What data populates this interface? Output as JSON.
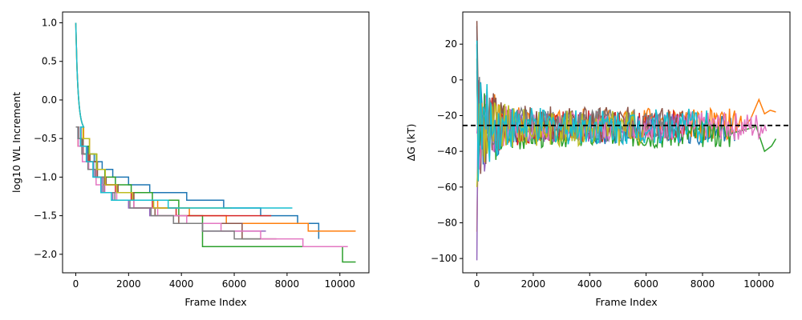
{
  "chart_data": [
    {
      "type": "line",
      "title": "",
      "xlabel": "Frame Index",
      "ylabel": "log10 WL Increment",
      "xlim": [
        -500,
        11100
      ],
      "ylim": [
        -2.24,
        1.14
      ],
      "xticks": [
        0,
        2000,
        4000,
        6000,
        8000,
        10000
      ],
      "yticks": [
        -2.0,
        -1.5,
        -1.0,
        -0.5,
        0.0,
        0.5,
        1.0
      ],
      "xtick_labels": [
        "0",
        "2000",
        "4000",
        "6000",
        "8000",
        "10000"
      ],
      "ytick_labels": [
        "−2.0",
        "−1.5",
        "−1.0",
        "−0.5",
        "0.0",
        "0.5",
        "1.0"
      ],
      "grid": false,
      "legend": "none",
      "step_values": [
        -0.35,
        -0.5,
        -0.6,
        -0.7,
        -0.8,
        -0.9,
        -1.0,
        -1.1,
        -1.2,
        -1.3,
        -1.4,
        -1.5,
        -1.6,
        -1.7,
        -1.8,
        -1.9,
        -2.0,
        -2.1
      ],
      "series": [
        {
          "color": "#1f77b4",
          "x": [
            0,
            80,
            220,
            450,
            700,
            1000,
            1400,
            2000,
            2800,
            4200,
            5600,
            7000,
            8400,
            9200
          ],
          "y": [
            -0.35,
            -0.5,
            -0.6,
            -0.7,
            -0.8,
            -0.9,
            -1.0,
            -1.1,
            -1.2,
            -1.3,
            -1.4,
            -1.5,
            -1.6,
            -1.8
          ]
        },
        {
          "color": "#ff7f0e",
          "x": [
            0,
            120,
            300,
            520,
            800,
            1150,
            1600,
            2200,
            3100,
            4300,
            5700,
            7200,
            8800,
            10600
          ],
          "y": [
            1.0,
            0.0,
            -0.5,
            -0.8,
            -1.0,
            -1.1,
            -1.2,
            -1.3,
            -1.4,
            -1.5,
            -1.6,
            -1.6,
            -1.7,
            -1.7
          ]
        },
        {
          "color": "#2ca02c",
          "x": [
            0,
            100,
            260,
            500,
            780,
            1100,
            1500,
            2100,
            2900,
            3900,
            4800,
            6200,
            8100,
            10100,
            10600
          ],
          "y": [
            -0.35,
            -0.5,
            -0.6,
            -0.7,
            -0.9,
            -1.0,
            -1.1,
            -1.2,
            -1.3,
            -1.5,
            -1.9,
            -1.9,
            -1.9,
            -2.1,
            -2.1
          ]
        },
        {
          "color": "#d62728",
          "x": [
            0,
            90,
            240,
            480,
            760,
            1080,
            1500,
            2100,
            2900,
            3800,
            5000,
            6200,
            7400
          ],
          "y": [
            -0.35,
            -0.6,
            -0.7,
            -0.9,
            -1.0,
            -1.1,
            -1.2,
            -1.3,
            -1.4,
            -1.5,
            -1.5,
            -1.5,
            -1.5
          ]
        },
        {
          "color": "#9467bd",
          "x": [
            0,
            70,
            200,
            420,
            680,
            1000,
            1400,
            2000,
            2800,
            3700,
            4800,
            6000,
            7200
          ],
          "y": [
            1.0,
            0.0,
            -0.6,
            -0.8,
            -1.0,
            -1.2,
            -1.3,
            -1.4,
            -1.5,
            -1.6,
            -1.7,
            -1.7,
            -1.7
          ]
        },
        {
          "color": "#8c564b",
          "x": [
            0,
            110,
            280,
            540,
            820,
            1150,
            1600,
            2200,
            3000,
            3900,
            5100,
            6300,
            7600
          ],
          "y": [
            -0.35,
            -0.5,
            -0.7,
            -0.8,
            -1.0,
            -1.1,
            -1.2,
            -1.4,
            -1.5,
            -1.6,
            -1.6,
            -1.8,
            -1.8
          ]
        },
        {
          "color": "#e377c2",
          "x": [
            0,
            95,
            250,
            490,
            770,
            1100,
            1550,
            2200,
            3100,
            4200,
            5500,
            7000,
            8600,
            10300
          ],
          "y": [
            -0.35,
            -0.6,
            -0.8,
            -0.9,
            -1.1,
            -1.2,
            -1.3,
            -1.4,
            -1.5,
            -1.6,
            -1.7,
            -1.8,
            -1.9,
            -1.9
          ]
        },
        {
          "color": "#7f7f7f",
          "x": [
            0,
            85,
            230,
            460,
            740,
            1060,
            1480,
            2050,
            2850,
            3700,
            4800,
            6000,
            7000
          ],
          "y": [
            -0.35,
            -0.5,
            -0.7,
            -0.9,
            -1.0,
            -1.2,
            -1.3,
            -1.4,
            -1.5,
            -1.6,
            -1.7,
            -1.8,
            -1.8
          ]
        },
        {
          "color": "#bcbd22",
          "x": [
            0,
            105,
            270,
            520,
            800,
            1120,
            1560,
            2150,
            2950,
            3900,
            4900,
            5900
          ],
          "y": [
            1.0,
            0.0,
            -0.5,
            -0.7,
            -0.9,
            -1.1,
            -1.2,
            -1.3,
            -1.4,
            -1.4,
            -1.4,
            -1.4
          ]
        },
        {
          "color": "#17becf",
          "x": [
            0,
            60,
            180,
            400,
            650,
            950,
            1350,
            1950,
            2750,
            3500,
            4700,
            6000,
            7200,
            8200
          ],
          "y": [
            1.0,
            0.0,
            -0.6,
            -0.8,
            -1.0,
            -1.2,
            -1.3,
            -1.3,
            -1.3,
            -1.4,
            -1.4,
            -1.4,
            -1.4,
            -1.4
          ]
        }
      ]
    },
    {
      "type": "line",
      "title": "",
      "xlabel": "Frame Index",
      "ylabel": "ΔG (kT)",
      "xlim": [
        -500,
        11100
      ],
      "ylim": [
        -108,
        38
      ],
      "xticks": [
        0,
        2000,
        4000,
        6000,
        8000,
        10000
      ],
      "yticks": [
        -100,
        -80,
        -60,
        -40,
        -20,
        0,
        20
      ],
      "xtick_labels": [
        "0",
        "2000",
        "4000",
        "6000",
        "8000",
        "10000"
      ],
      "ytick_labels": [
        "−100",
        "−80",
        "−60",
        "−40",
        "−20",
        "0",
        "20"
      ],
      "grid": false,
      "legend": "none",
      "reference_line": {
        "y": -25.5,
        "style": "dashed",
        "color": "#000000"
      },
      "series": [
        {
          "color": "#1f77b4",
          "start": 30,
          "end_frame": 9200,
          "mean": -28,
          "amp": 8,
          "seed": 1
        },
        {
          "color": "#ff7f0e",
          "start": -85,
          "end_frame": 10600,
          "mean": -25,
          "amp": 9,
          "seed": 2,
          "tail": [
            [
              9400,
              -28
            ],
            [
              9700,
              -22
            ],
            [
              10000,
              -11
            ],
            [
              10200,
              -19
            ],
            [
              10400,
              -17
            ],
            [
              10600,
              -18
            ]
          ]
        },
        {
          "color": "#2ca02c",
          "start": 12,
          "end_frame": 10600,
          "mean": -30,
          "amp": 8,
          "seed": 3,
          "tail": [
            [
              9000,
              -30
            ],
            [
              9500,
              -28
            ],
            [
              9900,
              -26
            ],
            [
              10200,
              -40
            ],
            [
              10450,
              -37
            ],
            [
              10600,
              -33
            ]
          ]
        },
        {
          "color": "#d62728",
          "start": 20,
          "end_frame": 7400,
          "mean": -26,
          "amp": 9,
          "seed": 4
        },
        {
          "color": "#9467bd",
          "start": -101,
          "end_frame": 7200,
          "mean": -27,
          "amp": 9,
          "seed": 5
        },
        {
          "color": "#8c564b",
          "start": 33,
          "end_frame": 7600,
          "mean": -24,
          "amp": 9,
          "seed": 6
        },
        {
          "color": "#e377c2",
          "start": -30,
          "end_frame": 10300,
          "mean": -26,
          "amp": 8,
          "seed": 7
        },
        {
          "color": "#7f7f7f",
          "start": 5,
          "end_frame": 7000,
          "mean": -25,
          "amp": 9,
          "seed": 8
        },
        {
          "color": "#bcbd22",
          "start": -60,
          "end_frame": 5900,
          "mean": -27,
          "amp": 10,
          "seed": 9
        },
        {
          "color": "#17becf",
          "start": 22,
          "end_frame": 8200,
          "mean": -26,
          "amp": 10,
          "seed": 10
        }
      ]
    }
  ]
}
